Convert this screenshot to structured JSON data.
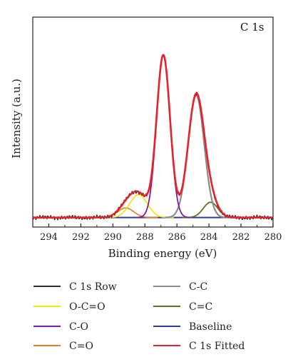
{
  "chart_data": {
    "type": "line",
    "title": "",
    "panel_label": "C 1s",
    "xlabel": "Binding energy (eV)",
    "ylabel": "Intensity (a.u.)",
    "xlim": [
      295,
      280
    ],
    "ylim": [
      0,
      1.1
    ],
    "x_ticks": [
      "294",
      "292",
      "290",
      "288",
      "286",
      "284",
      "282",
      "280"
    ],
    "x_tick_values": [
      294,
      292,
      290,
      288,
      286,
      284,
      282,
      280
    ],
    "grid": false,
    "legend_position": "below",
    "series": [
      {
        "name": "C 1s Row",
        "color": "#2b2b2b",
        "kind": "raw",
        "components": [
          "C-C",
          "C-O",
          "O-C=O",
          "C=O",
          "C=C"
        ],
        "width": 1.5
      },
      {
        "name": "O-C=O",
        "color": "#f2e600",
        "kind": "peak",
        "center": 288.4,
        "height": 0.12,
        "sigma": 0.55,
        "width": 1.6
      },
      {
        "name": "C-O",
        "color": "#7a1fa2",
        "kind": "peak",
        "center": 286.85,
        "height": 0.85,
        "sigma": 0.42,
        "width": 1.8
      },
      {
        "name": "C=O",
        "color": "#f07820",
        "kind": "peak",
        "center": 289.2,
        "height": 0.05,
        "sigma": 0.5,
        "width": 1.6
      },
      {
        "name": "C-C",
        "color": "#8c8c8c",
        "kind": "peak",
        "center": 284.8,
        "height": 0.64,
        "sigma": 0.5,
        "width": 2.2
      },
      {
        "name": "C=C",
        "color": "#6b6b1f",
        "kind": "peak",
        "center": 283.9,
        "height": 0.08,
        "sigma": 0.45,
        "width": 1.8
      },
      {
        "name": "Baseline",
        "color": "#2c3d9e",
        "kind": "baseline",
        "value": 0.05,
        "width": 2.0
      },
      {
        "name": "C 1s Fitted",
        "color": "#e8202a",
        "kind": "fit",
        "components": [
          "C-C",
          "C-O",
          "O-C=O",
          "C=O",
          "C=C"
        ],
        "width": 2.6
      }
    ],
    "legend_order": [
      [
        "C 1s Row",
        "C-C"
      ],
      [
        "O-C=O",
        "C=C"
      ],
      [
        "C-O",
        "Baseline"
      ],
      [
        "C=O",
        "C 1s Fitted"
      ]
    ]
  }
}
